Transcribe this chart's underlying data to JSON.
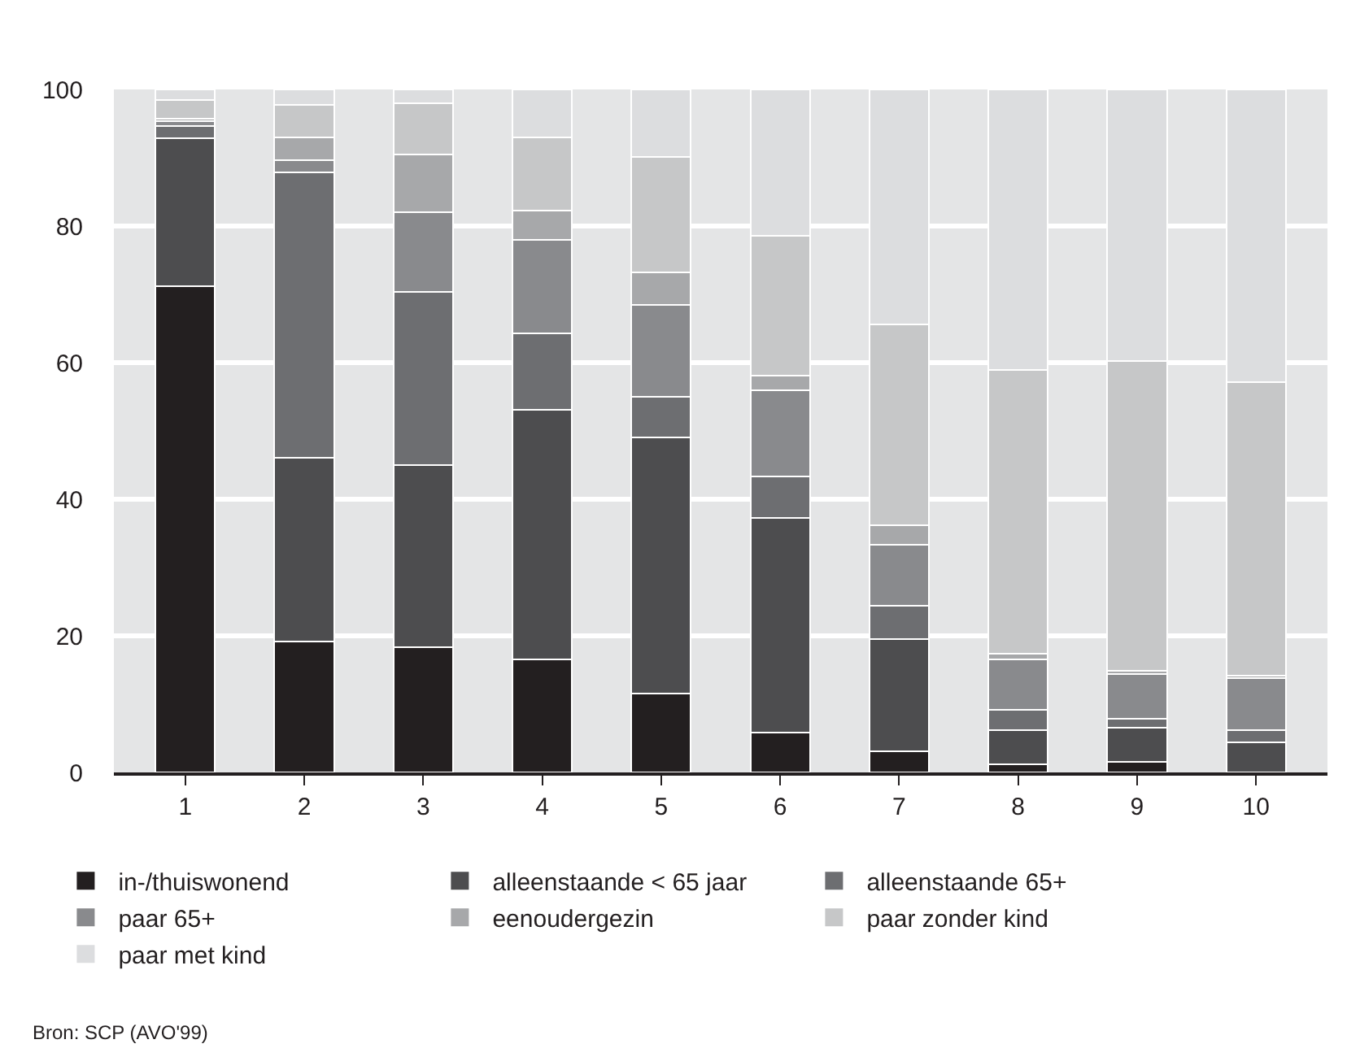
{
  "chart_data": {
    "type": "bar",
    "stacked": true,
    "categories": [
      "1",
      "2",
      "3",
      "4",
      "5",
      "6",
      "7",
      "8",
      "9",
      "10"
    ],
    "series": [
      {
        "name": "in-/thuiswonend",
        "color": "#231f20",
        "values": [
          71.2,
          19.2,
          18.3,
          16.5,
          11.6,
          5.8,
          3.1,
          1.2,
          1.6,
          0
        ]
      },
      {
        "name": "alleenstaande < 65 jaar",
        "color": "#4d4d4f",
        "values": [
          21.6,
          26.9,
          26.7,
          36.6,
          37.5,
          31.5,
          16.4,
          5.0,
          4.9,
          4.4
        ]
      },
      {
        "name": "alleenstaande 65+",
        "color": "#6d6e71",
        "values": [
          1.8,
          41.7,
          25.3,
          11.2,
          5.9,
          6.0,
          4.9,
          3.0,
          1.3,
          1.8
        ]
      },
      {
        "name": "paar 65+",
        "color": "#898a8d",
        "values": [
          0.7,
          1.8,
          11.7,
          13.7,
          13.5,
          12.7,
          8.9,
          7.4,
          6.6,
          7.6
        ]
      },
      {
        "name": "eenoudergezin",
        "color": "#a7a8aa",
        "values": [
          0.4,
          3.4,
          8.5,
          4.3,
          4.7,
          2.1,
          2.9,
          0.8,
          0.5,
          0.4
        ]
      },
      {
        "name": "paar zonder kind",
        "color": "#c6c7c8",
        "values": [
          2.7,
          4.7,
          7.5,
          10.7,
          16.9,
          20.5,
          29.4,
          41.5,
          45.3,
          43.0
        ]
      },
      {
        "name": "paar met kind",
        "color": "#dcdddf",
        "values": [
          1.6,
          2.3,
          2.0,
          7.0,
          9.9,
          21.4,
          34.4,
          41.1,
          39.8,
          42.8
        ]
      }
    ],
    "ylim": [
      0,
      100
    ],
    "yticks": [
      0,
      20,
      40,
      60,
      80,
      100
    ],
    "grid": "y",
    "legend": "bottom",
    "annotations": [
      "Bron: SCP (AVO'99)"
    ]
  }
}
